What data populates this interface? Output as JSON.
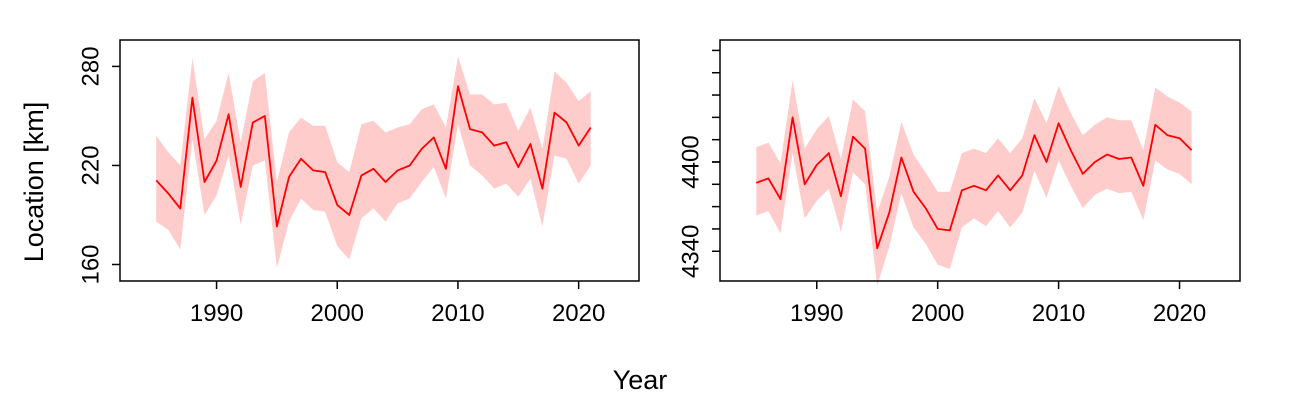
{
  "figure": {
    "ylabel": "Location [km]",
    "xlabel": "Year"
  },
  "chart_data": [
    {
      "type": "line",
      "x": [
        1985,
        1986,
        1987,
        1988,
        1989,
        1990,
        1991,
        1992,
        1993,
        1994,
        1995,
        1996,
        1997,
        1998,
        1999,
        2000,
        2001,
        2002,
        2003,
        2004,
        2005,
        2006,
        2007,
        2008,
        2009,
        2010,
        2011,
        2012,
        2013,
        2014,
        2015,
        2016,
        2017,
        2018,
        2019,
        2020,
        2021
      ],
      "series": [
        {
          "y": [
            211,
            203,
            194,
            261,
            210,
            223,
            251,
            207,
            246,
            250,
            183,
            213,
            224,
            217,
            216,
            196,
            190,
            214,
            218,
            210,
            217,
            220,
            230,
            237,
            218,
            268,
            242,
            240,
            232,
            234,
            219,
            233,
            206,
            252,
            246,
            232,
            243
          ],
          "lower": [
            186,
            181,
            169,
            236,
            190,
            202,
            226,
            184,
            220,
            223,
            158,
            186,
            200,
            193,
            192,
            171,
            163,
            188,
            194,
            186,
            197,
            200,
            210,
            219,
            200,
            245,
            220,
            214,
            206,
            209,
            201,
            212,
            183,
            226,
            224,
            209,
            220
          ],
          "upper": [
            238,
            228,
            220,
            285,
            236,
            247,
            276,
            234,
            271,
            276,
            210,
            240,
            249,
            244,
            244,
            222,
            216,
            245,
            247,
            240,
            243,
            245,
            254,
            257,
            243,
            286,
            263,
            263,
            257,
            258,
            241,
            255,
            230,
            277,
            270,
            259,
            265
          ],
          "color": "#ff0000",
          "band_color": "#ffcccc"
        }
      ],
      "xlim": [
        1982,
        2025
      ],
      "ylim": [
        150,
        296
      ],
      "xticks": [
        1990,
        2000,
        2010,
        2020
      ],
      "yticks": [
        160,
        220,
        280
      ]
    },
    {
      "type": "line",
      "x": [
        1985,
        1986,
        1987,
        1988,
        1989,
        1990,
        1991,
        1992,
        1993,
        1994,
        1995,
        1996,
        1997,
        1998,
        1999,
        2000,
        2001,
        2002,
        2003,
        2004,
        2005,
        2006,
        2007,
        2008,
        2009,
        2010,
        2011,
        2012,
        2013,
        2014,
        2015,
        2016,
        2017,
        2018,
        2019,
        2020,
        2021
      ],
      "series": [
        {
          "y": [
            4386,
            4389,
            4375,
            4430,
            4385,
            4398,
            4406,
            4377,
            4417,
            4409,
            4342,
            4366,
            4403,
            4380,
            4369,
            4355,
            4354,
            4381,
            4384,
            4381,
            4391,
            4381,
            4391,
            4418,
            4400,
            4426,
            4408,
            4392,
            4400,
            4405,
            4402,
            4403,
            4384,
            4425,
            4418,
            4416,
            4408
          ],
          "lower": [
            4364,
            4367,
            4352,
            4406,
            4362,
            4374,
            4382,
            4353,
            4393,
            4385,
            4317,
            4343,
            4379,
            4356,
            4345,
            4331,
            4328,
            4356,
            4362,
            4357,
            4367,
            4356,
            4366,
            4394,
            4376,
            4401,
            4384,
            4369,
            4378,
            4382,
            4379,
            4380,
            4361,
            4401,
            4395,
            4392,
            4385
          ],
          "upper": [
            4410,
            4413,
            4399,
            4455,
            4409,
            4422,
            4431,
            4402,
            4442,
            4434,
            4366,
            4390,
            4427,
            4405,
            4393,
            4380,
            4380,
            4406,
            4409,
            4406,
            4416,
            4406,
            4416,
            4443,
            4426,
            4451,
            4433,
            4418,
            4425,
            4430,
            4428,
            4428,
            4408,
            4450,
            4444,
            4440,
            4434
          ],
          "color": "#ff0000",
          "band_color": "#ffcccc"
        }
      ],
      "xlim": [
        1982,
        2025
      ],
      "ylim": [
        4320,
        4482
      ],
      "xticks": [
        1990,
        2000,
        2010,
        2020
      ],
      "yticks": [
        4340,
        4400
      ],
      "minor_yticks": [
        4340,
        4355,
        4370,
        4385,
        4400,
        4415,
        4430,
        4445,
        4460,
        4475
      ]
    }
  ]
}
